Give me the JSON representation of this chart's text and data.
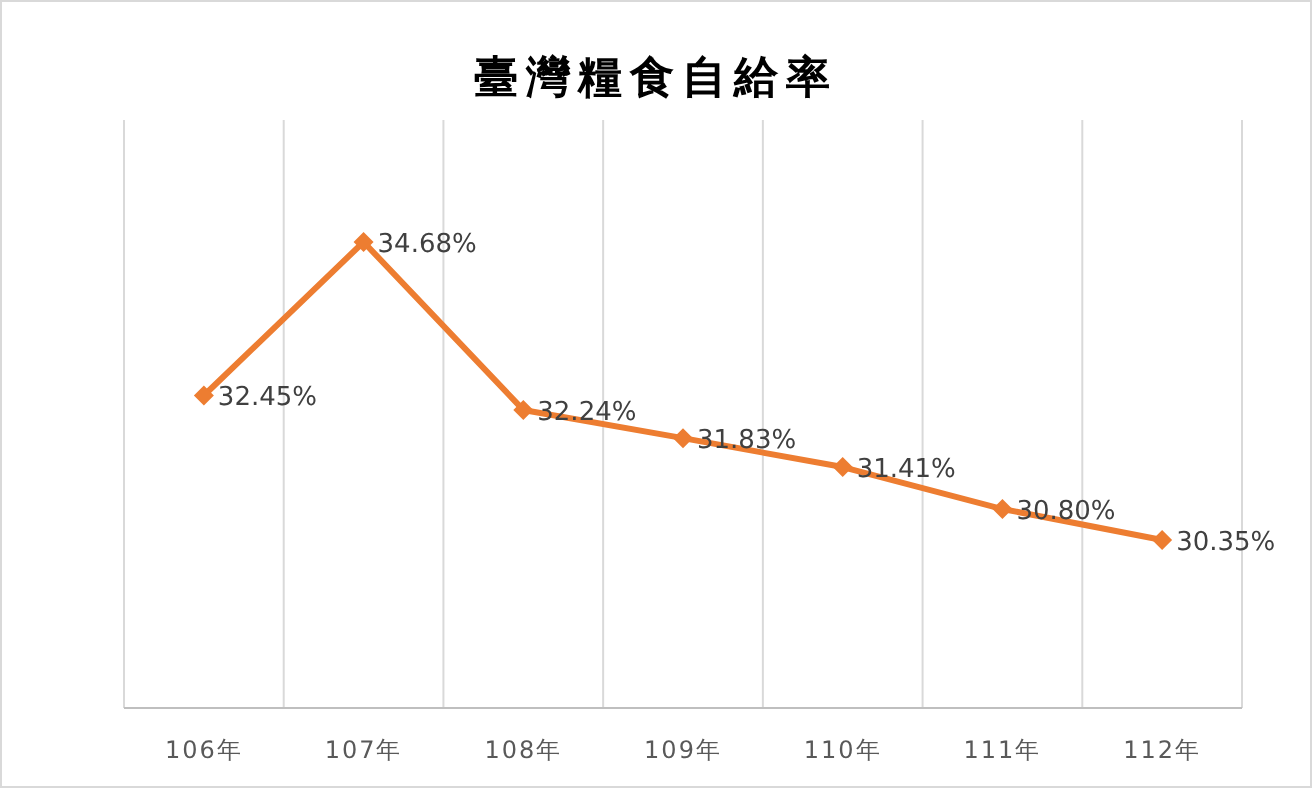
{
  "chart_data": {
    "type": "line",
    "title": "臺灣糧食自給率",
    "categories": [
      "106年",
      "107年",
      "108年",
      "109年",
      "110年",
      "111年",
      "112年"
    ],
    "series": [
      {
        "color": "#ed7d31",
        "values": [
          32.45,
          34.68,
          32.24,
          31.83,
          31.41,
          30.8,
          30.35
        ],
        "value_labels": [
          "32.45%",
          "34.68%",
          "32.24%",
          "31.83%",
          "31.41%",
          "30.80%",
          "30.35%"
        ]
      }
    ],
    "marker": "diamond",
    "grid": "x"
  }
}
